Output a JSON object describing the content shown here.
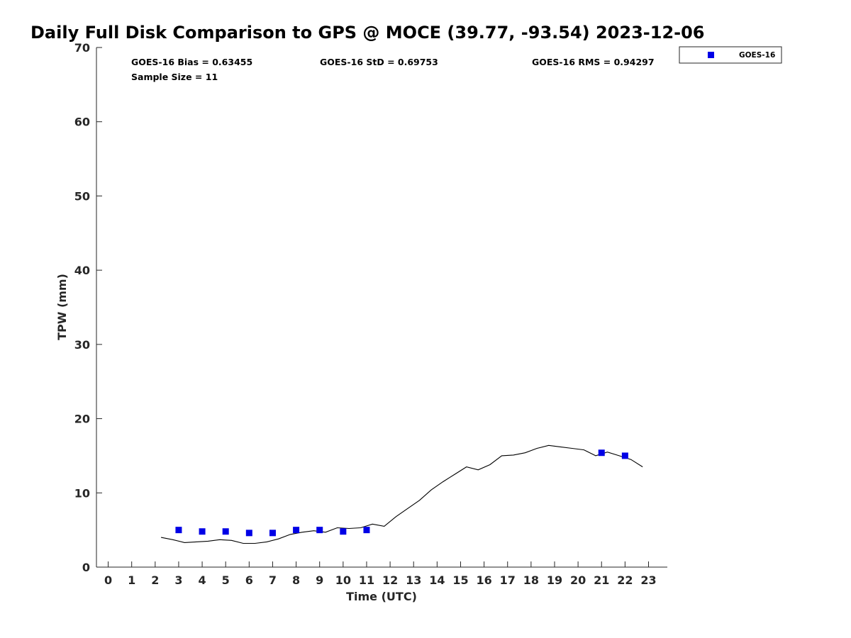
{
  "chart_data": {
    "type": "scatter",
    "title": "Daily Full Disk Comparison to GPS @ MOCE (39.77, -93.54) 2023-12-06",
    "xlabel": "Time (UTC)",
    "ylabel": "TPW (mm)",
    "xlim": [
      -0.5,
      23.8
    ],
    "ylim": [
      0,
      70
    ],
    "xticks": [
      "0",
      "1",
      "2",
      "3",
      "4",
      "5",
      "6",
      "7",
      "8",
      "9",
      "10",
      "11",
      "12",
      "13",
      "14",
      "15",
      "16",
      "17",
      "18",
      "19",
      "20",
      "21",
      "22",
      "23"
    ],
    "yticks": [
      "0",
      "10",
      "20",
      "30",
      "40",
      "50",
      "60",
      "70"
    ],
    "grid": false,
    "legend_position": "top-right",
    "stats": {
      "bias": "GOES-16 Bias = 0.63455",
      "std": "GOES-16 StD = 0.69753",
      "rms": "GOES-16 RMS = 0.94297",
      "sample": "Sample Size = 11"
    },
    "series": [
      {
        "name": "GOES-16",
        "marker": "square",
        "color": "#0000e6",
        "x": [
          3,
          4,
          5,
          6,
          7,
          8,
          9,
          10,
          11,
          21,
          22
        ],
        "y": [
          5.0,
          4.8,
          4.8,
          4.6,
          4.6,
          5.0,
          5.0,
          4.8,
          5.0,
          15.4,
          15.0
        ]
      },
      {
        "marker": "line",
        "color": "#000000",
        "x": [
          2.25,
          2.75,
          3.25,
          3.75,
          4.25,
          4.75,
          5.25,
          5.75,
          6.25,
          6.75,
          7.25,
          7.75,
          8.25,
          8.75,
          9.25,
          9.75,
          10.25,
          10.75,
          11.25,
          11.75,
          12.25,
          12.75,
          13.25,
          13.75,
          14.25,
          14.75,
          15.25,
          15.75,
          16.25,
          16.75,
          17.25,
          17.75,
          18.25,
          18.75,
          19.25,
          19.75,
          20.25,
          20.75,
          21.25,
          21.75,
          22.25,
          22.75
        ],
        "y": [
          4.0,
          3.7,
          3.3,
          3.4,
          3.5,
          3.7,
          3.6,
          3.2,
          3.2,
          3.4,
          3.8,
          4.4,
          4.7,
          4.9,
          4.7,
          5.3,
          5.2,
          5.3,
          5.8,
          5.5,
          6.8,
          7.9,
          9.0,
          10.4,
          11.5,
          12.5,
          13.5,
          13.1,
          13.8,
          15.0,
          15.1,
          15.4,
          16.0,
          16.4,
          16.2,
          16.0,
          15.8,
          15.0,
          15.5,
          15.0,
          14.5,
          13.5
        ]
      }
    ]
  }
}
